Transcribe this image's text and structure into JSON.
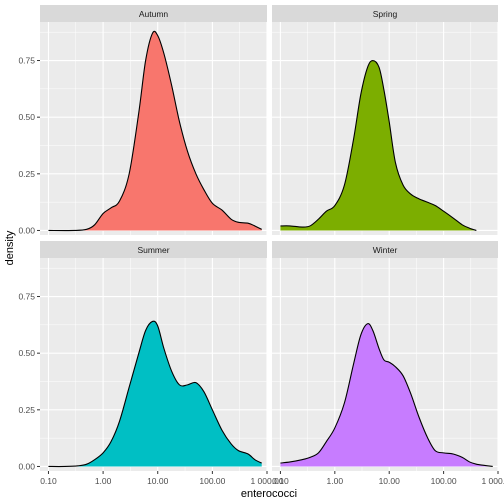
{
  "chart_data": {
    "type": "area",
    "chart_kind": "faceted density plot",
    "xlabel": "enterococci",
    "ylabel": "density",
    "x_scale": "log10",
    "xlim": [
      0.07,
      1000
    ],
    "ylim": [
      -0.02,
      0.92
    ],
    "x_ticks": [
      0.1,
      1,
      10,
      100,
      1000
    ],
    "x_tick_labels": [
      "0.10",
      "1.00",
      "10.00",
      "100.00",
      "1 000.00"
    ],
    "y_ticks": [
      0,
      0.25,
      0.5,
      0.75
    ],
    "y_tick_labels": [
      "0.00",
      "0.25",
      "0.50",
      "0.75"
    ],
    "grid": true,
    "facets": [
      {
        "name": "Autumn",
        "color": "#F8766D",
        "x": [
          0.1,
          0.3,
          0.5,
          0.7,
          1.0,
          1.4,
          2.0,
          3.0,
          4.5,
          6.0,
          8.0,
          10.0,
          13.0,
          18.0,
          25.0,
          35.0,
          50.0,
          70.0,
          100.0,
          150.0,
          220.0,
          300.0,
          450.0,
          600.0,
          800.0
        ],
        "y": [
          0.0,
          0.0,
          0.005,
          0.025,
          0.075,
          0.1,
          0.13,
          0.25,
          0.52,
          0.75,
          0.87,
          0.86,
          0.78,
          0.64,
          0.48,
          0.35,
          0.25,
          0.18,
          0.12,
          0.09,
          0.05,
          0.036,
          0.032,
          0.02,
          0.005
        ]
      },
      {
        "name": "Spring",
        "color": "#7CAE00",
        "x": [
          0.1,
          0.15,
          0.25,
          0.35,
          0.5,
          0.7,
          1.0,
          1.5,
          2.2,
          3.0,
          4.0,
          5.0,
          6.5,
          8.0,
          10.0,
          13.0,
          18.0,
          25.0,
          35.0,
          50.0,
          70.0,
          100.0,
          150.0,
          220.0,
          300.0,
          400.0
        ],
        "y": [
          0.02,
          0.02,
          0.015,
          0.02,
          0.05,
          0.085,
          0.11,
          0.2,
          0.4,
          0.6,
          0.72,
          0.75,
          0.72,
          0.62,
          0.48,
          0.3,
          0.2,
          0.16,
          0.14,
          0.125,
          0.11,
          0.085,
          0.055,
          0.025,
          0.01,
          0.0
        ]
      },
      {
        "name": "Summer",
        "color": "#00BFC4",
        "x": [
          0.1,
          0.2,
          0.35,
          0.5,
          0.7,
          1.0,
          1.4,
          2.0,
          3.0,
          4.5,
          6.0,
          8.0,
          10.0,
          13.0,
          18.0,
          25.0,
          35.0,
          50.0,
          70.0,
          100.0,
          150.0,
          220.0,
          300.0,
          450.0,
          600.0,
          800.0
        ],
        "y": [
          0.0,
          0.0,
          0.003,
          0.01,
          0.03,
          0.06,
          0.11,
          0.2,
          0.35,
          0.5,
          0.6,
          0.64,
          0.62,
          0.52,
          0.42,
          0.36,
          0.36,
          0.37,
          0.33,
          0.25,
          0.16,
          0.1,
          0.07,
          0.055,
          0.03,
          0.015
        ]
      },
      {
        "name": "Winter",
        "color": "#C77CFF",
        "x": [
          0.1,
          0.15,
          0.25,
          0.35,
          0.5,
          0.7,
          1.0,
          1.5,
          2.2,
          3.0,
          4.0,
          5.0,
          6.5,
          8.0,
          10.0,
          13.0,
          18.0,
          25.0,
          35.0,
          50.0,
          70.0,
          100.0,
          150.0,
          220.0,
          300.0,
          400.0,
          550.0,
          800.0
        ],
        "y": [
          0.015,
          0.02,
          0.03,
          0.04,
          0.06,
          0.11,
          0.17,
          0.28,
          0.45,
          0.58,
          0.63,
          0.6,
          0.52,
          0.47,
          0.46,
          0.44,
          0.4,
          0.32,
          0.22,
          0.13,
          0.07,
          0.06,
          0.055,
          0.04,
          0.02,
          0.01,
          0.005,
          0.0
        ]
      }
    ]
  }
}
